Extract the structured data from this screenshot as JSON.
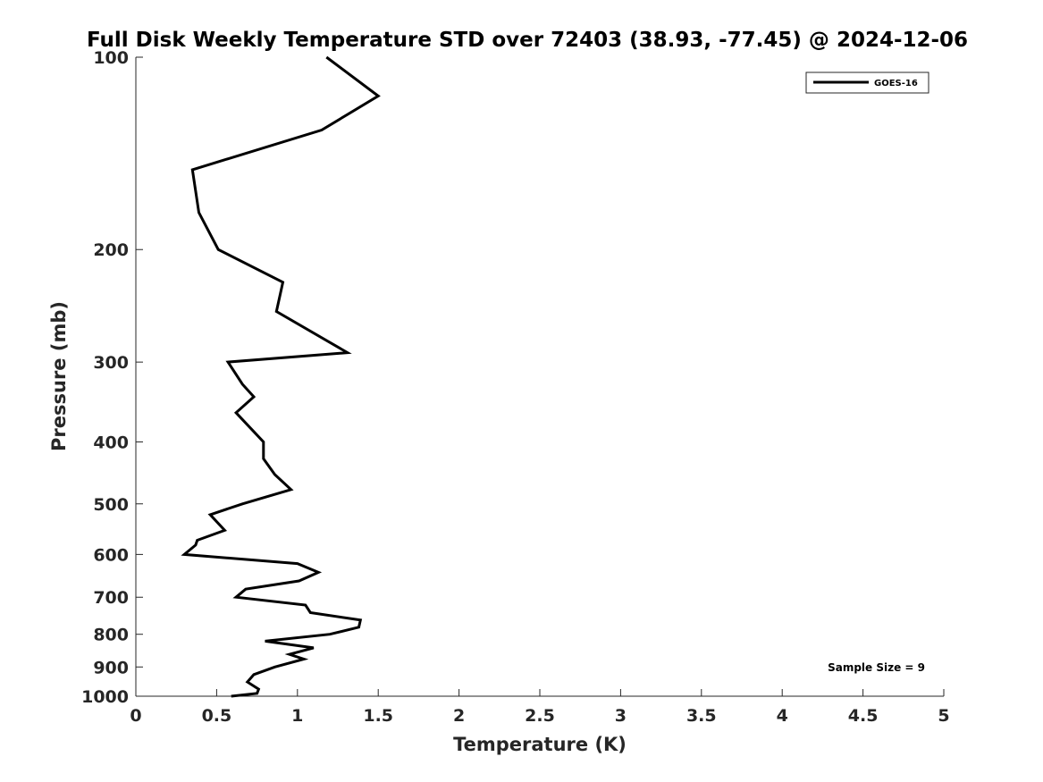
{
  "chart_data": {
    "type": "line",
    "title": "Full Disk Weekly Temperature STD over 72403 (38.93, -77.45) @ 2024-12-06",
    "xlabel": "Temperature (K)",
    "ylabel": "Pressure (mb)",
    "xlim": [
      0,
      5
    ],
    "ylim": [
      100,
      1000
    ],
    "y_scale": "log",
    "y_reversed": true,
    "x_ticks": [
      "0",
      "0.5",
      "1",
      "1.5",
      "2",
      "2.5",
      "3",
      "3.5",
      "4",
      "4.5",
      "5"
    ],
    "y_ticks": [
      "100",
      "200",
      "300",
      "400",
      "500",
      "600",
      "700",
      "800",
      "900",
      "1000"
    ],
    "grid": false,
    "legend_position": "top-right",
    "series": [
      {
        "name": "GOES-16",
        "color": "#000000",
        "points": [
          [
            1.18,
            100
          ],
          [
            1.5,
            115
          ],
          [
            1.15,
            130
          ],
          [
            0.35,
            150
          ],
          [
            0.39,
            175
          ],
          [
            0.51,
            200
          ],
          [
            0.91,
            225
          ],
          [
            0.87,
            250
          ],
          [
            1.31,
            290
          ],
          [
            0.57,
            300
          ],
          [
            0.66,
            325
          ],
          [
            0.73,
            340
          ],
          [
            0.62,
            360
          ],
          [
            0.79,
            400
          ],
          [
            0.79,
            425
          ],
          [
            0.86,
            450
          ],
          [
            0.96,
            475
          ],
          [
            0.66,
            500
          ],
          [
            0.46,
            520
          ],
          [
            0.55,
            550
          ],
          [
            0.38,
            570
          ],
          [
            0.37,
            580
          ],
          [
            0.3,
            600
          ],
          [
            1.0,
            620
          ],
          [
            1.13,
            640
          ],
          [
            1.01,
            660
          ],
          [
            0.68,
            680
          ],
          [
            0.62,
            700
          ],
          [
            1.05,
            720
          ],
          [
            1.08,
            740
          ],
          [
            1.39,
            760
          ],
          [
            1.38,
            780
          ],
          [
            1.2,
            800
          ],
          [
            0.8,
            820
          ],
          [
            1.1,
            840
          ],
          [
            0.95,
            860
          ],
          [
            1.04,
            875
          ],
          [
            0.86,
            900
          ],
          [
            0.73,
            925
          ],
          [
            0.69,
            950
          ],
          [
            0.76,
            975
          ],
          [
            0.75,
            990
          ],
          [
            0.59,
            1000
          ]
        ]
      }
    ],
    "annotations": [
      "Sample Size = 9"
    ]
  }
}
